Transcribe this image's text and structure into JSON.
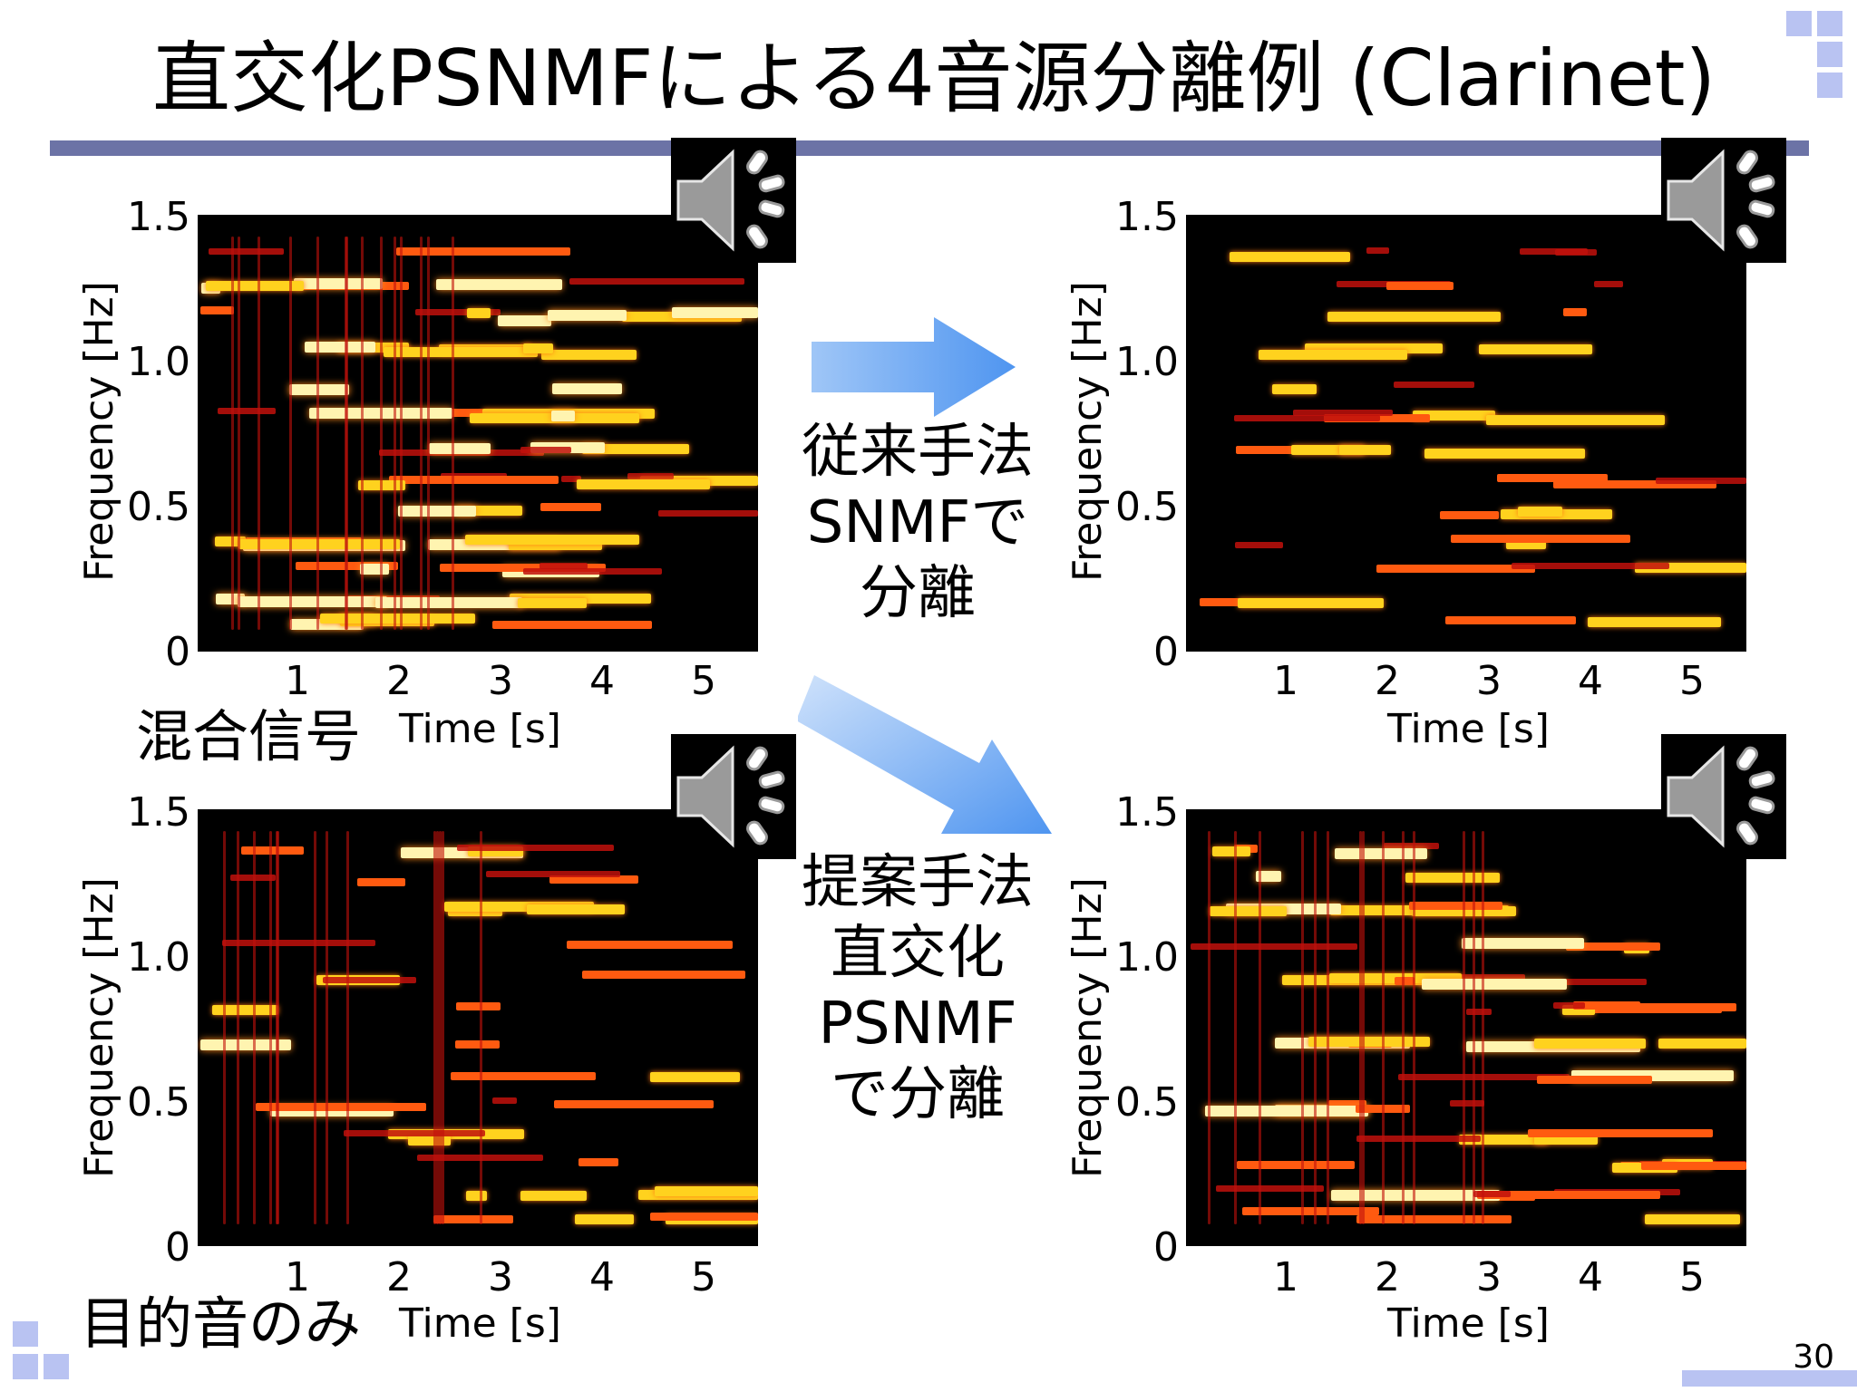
{
  "slide": {
    "title": "直交化PSNMFによる4音源分離例 (Clarinet)",
    "page_number": "30",
    "rule_color": "#6c73a6",
    "deco_color": "#b9c3f2"
  },
  "axes": {
    "ylabel": "Frequency [Hz]",
    "xlabel": "Time [s]",
    "yticks": [
      "1.5",
      "1.0",
      "0.5",
      "0"
    ],
    "xticks": [
      "1",
      "2",
      "3",
      "4",
      "5"
    ]
  },
  "panels": {
    "mixed": {
      "caption": "混合信号"
    },
    "target": {
      "caption": "目的音のみ"
    }
  },
  "methods": {
    "conventional": {
      "lines": [
        "従来手法",
        "SNMFで",
        "分離"
      ]
    },
    "proposed": {
      "lines": [
        "提案手法",
        "直交化",
        "PSNMF",
        "で分離"
      ]
    }
  },
  "icons": {
    "speaker": "speaker-icon",
    "arrow": "arrow-icon"
  },
  "colors": {
    "spectrogram_bg": "#000000",
    "low": "#c1110c",
    "mid": "#ff5a10",
    "high": "#ffd21e",
    "hot": "#fff4b0",
    "arrow": "#4f95f0"
  }
}
